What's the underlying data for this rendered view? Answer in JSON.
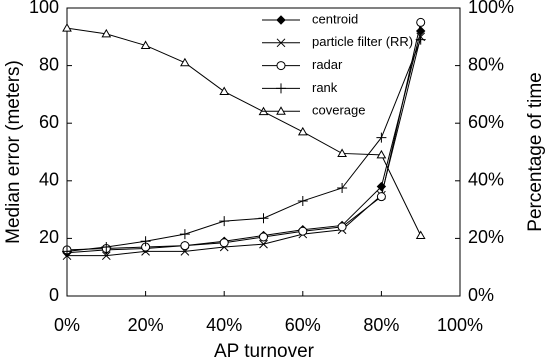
{
  "chart_data": {
    "type": "line",
    "x": [
      0,
      10,
      20,
      30,
      40,
      50,
      60,
      70,
      80,
      90
    ],
    "xlabel": "AP turnover",
    "ylabel": "Median error (meters)",
    "y2label": "Percentage of time",
    "xlim": [
      0,
      100
    ],
    "xticks": [
      {
        "value": 0,
        "label": "0%"
      },
      {
        "value": 20,
        "label": "20%"
      },
      {
        "value": 40,
        "label": "40%"
      },
      {
        "value": 60,
        "label": "60%"
      },
      {
        "value": 80,
        "label": "80%"
      },
      {
        "value": 100,
        "label": "100%"
      }
    ],
    "ylim": [
      0,
      100
    ],
    "yticks": [
      0,
      20,
      40,
      60,
      80,
      100
    ],
    "y2lim": [
      0,
      100
    ],
    "y2ticks": [
      {
        "value": 0,
        "label": "0%"
      },
      {
        "value": 20,
        "label": "20%"
      },
      {
        "value": 40,
        "label": "40%"
      },
      {
        "value": 60,
        "label": "60%"
      },
      {
        "value": 80,
        "label": "80%"
      },
      {
        "value": 100,
        "label": "100%"
      }
    ],
    "legend": "upper right",
    "series": [
      {
        "name": "centroid",
        "color": "#000000",
        "marker": "diamond",
        "values": [
          15,
          16,
          16.5,
          17.5,
          19,
          21,
          23,
          24.5,
          38,
          92
        ]
      },
      {
        "name": "particle filter (RR)",
        "color": "#000000",
        "marker": "x",
        "values": [
          14,
          14,
          15.5,
          15.5,
          17,
          18,
          21.5,
          23,
          35,
          90
        ]
      },
      {
        "name": "radar",
        "color": "#000000",
        "marker": "circle",
        "values": [
          16,
          16.5,
          17,
          17.5,
          18.5,
          20.5,
          22.5,
          24,
          34.5,
          95
        ]
      },
      {
        "name": "rank",
        "color": "#000000",
        "marker": "plus",
        "values": [
          15.5,
          17,
          19,
          21.5,
          26,
          27,
          33,
          37.5,
          55,
          89
        ]
      },
      {
        "name": "coverage",
        "color": "#000000",
        "marker": "triangle",
        "axis": "y2",
        "values": [
          93,
          91,
          87,
          81,
          71,
          64,
          57,
          49.5,
          49,
          21
        ]
      }
    ]
  }
}
